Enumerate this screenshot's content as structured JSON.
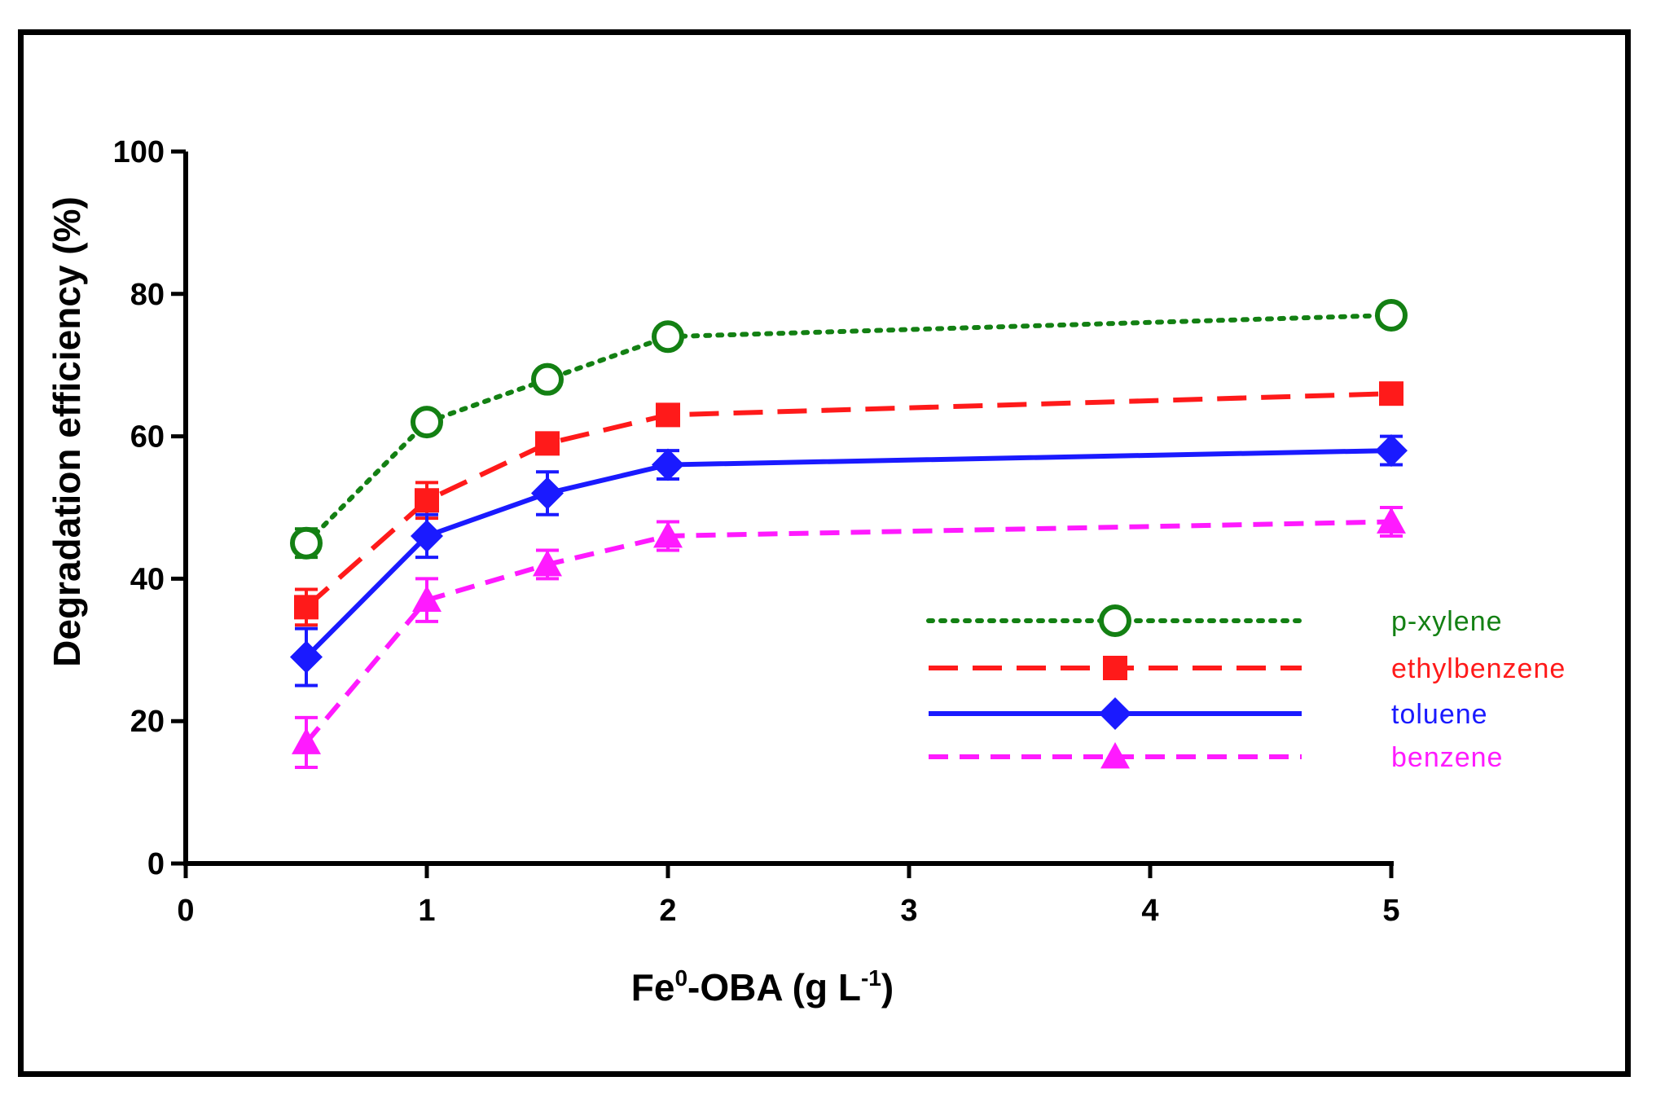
{
  "chart_data": {
    "type": "line",
    "title": "",
    "xlabel": "Fe0-OBA (g L-1)",
    "xlabel_parts": {
      "base": "Fe",
      "sup1": "0",
      "mid": "-OBA (g L",
      "sup2": "-1",
      "end": ")"
    },
    "ylabel": "Degradation efficiency (%)",
    "ylim": [
      0,
      100
    ],
    "y_ticks": [
      "0",
      "20",
      "40",
      "60",
      "80",
      "100"
    ],
    "y_tick_values": [
      0,
      20,
      40,
      60,
      80,
      100
    ],
    "x_ticks": [
      "0",
      "1",
      "2",
      "3",
      "4",
      "5"
    ],
    "x_tick_positions": [
      0,
      1,
      2,
      3,
      4,
      5
    ],
    "x_categories": [
      "0.5",
      "1",
      "1.5",
      "2",
      "5"
    ],
    "x_positions": [
      0.5,
      1,
      1.5,
      2,
      5
    ],
    "legend_position": "center-right",
    "series": [
      {
        "name": "p-xylene",
        "color": "#138013",
        "marker": "open-circle",
        "line": "dotted",
        "values": [
          45,
          62,
          68,
          74,
          77
        ],
        "errors": [
          2,
          1,
          1,
          1,
          1
        ]
      },
      {
        "name": "ethylbenzene",
        "color": "#ff1a1a",
        "marker": "square",
        "line": "long-dash",
        "values": [
          36,
          51,
          59,
          63,
          66
        ],
        "errors": [
          2.5,
          2.5,
          1,
          1,
          1
        ]
      },
      {
        "name": "toluene",
        "color": "#1a1aff",
        "marker": "diamond",
        "line": "solid",
        "values": [
          29,
          46,
          52,
          56,
          58
        ],
        "errors": [
          4,
          3,
          3,
          2,
          2
        ]
      },
      {
        "name": "benzene",
        "color": "#ff1aff",
        "marker": "triangle",
        "line": "short-dash",
        "values": [
          17,
          37,
          42,
          46,
          48
        ],
        "errors": [
          3.5,
          3,
          2,
          2,
          2
        ]
      }
    ]
  }
}
